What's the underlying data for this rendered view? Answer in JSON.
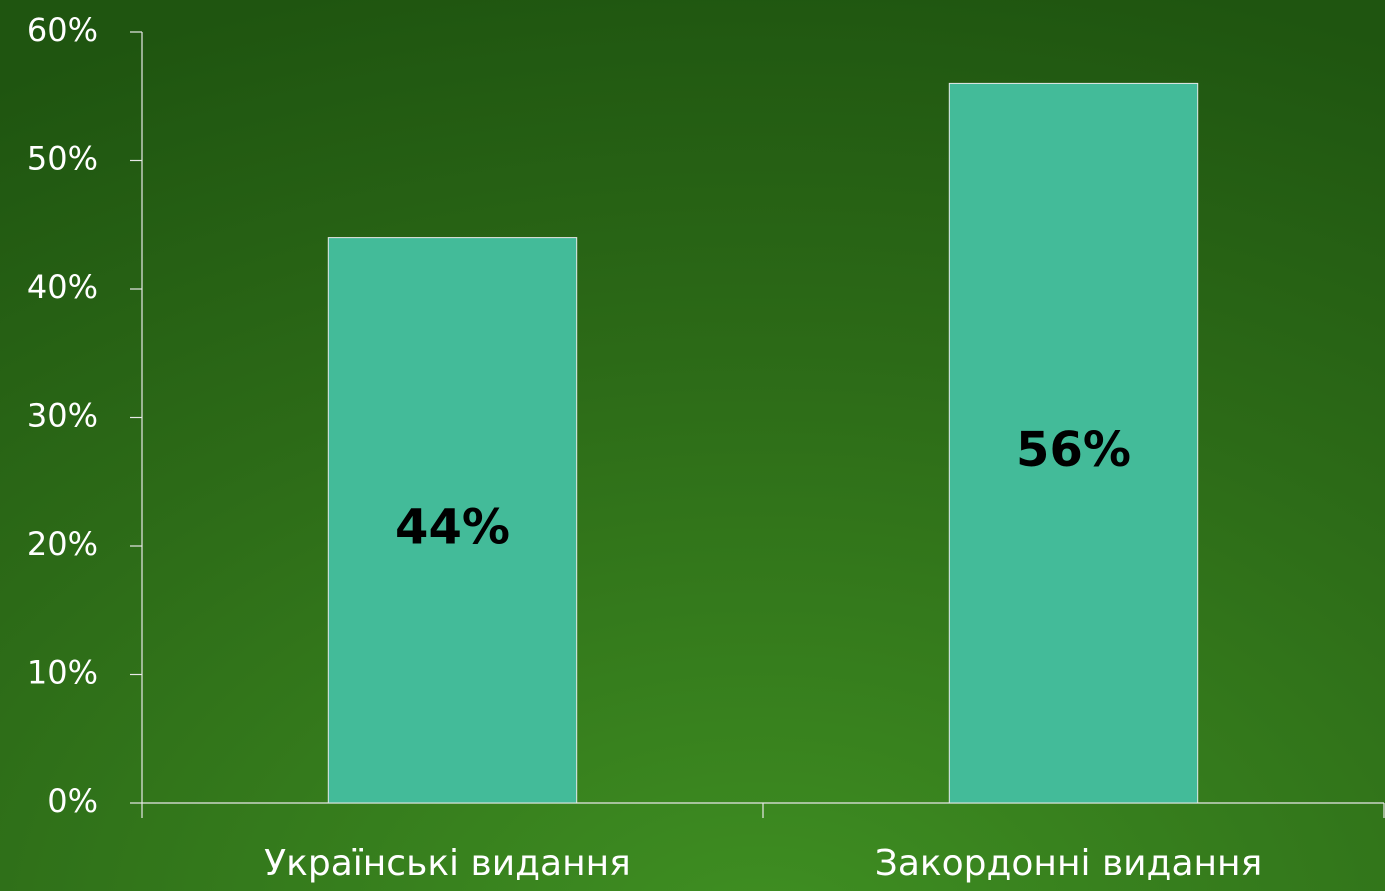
{
  "chart_data": {
    "type": "bar",
    "categories": [
      "Українські видання",
      "Закордонні видання"
    ],
    "values": [
      44,
      56
    ],
    "value_labels": [
      "44%",
      "56%"
    ],
    "color": "#43bb99",
    "ylim": [
      0,
      60
    ],
    "yticks": [
      {
        "value": 0,
        "label": "0%"
      },
      {
        "value": 10,
        "label": "10%"
      },
      {
        "value": 20,
        "label": "20%"
      },
      {
        "value": 30,
        "label": "30%"
      },
      {
        "value": 40,
        "label": "40%"
      },
      {
        "value": 50,
        "label": "50%"
      },
      {
        "value": 60,
        "label": "60%"
      }
    ],
    "grid": false
  }
}
